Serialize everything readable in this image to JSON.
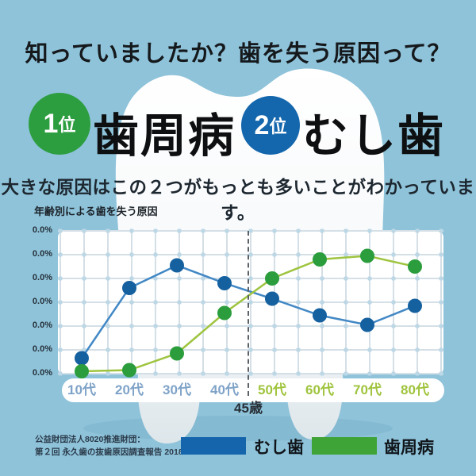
{
  "page": {
    "title": "知っていましたか？歯を失う原因って？",
    "subtitle": "大きな原因はこの２つがもっとも多いことがわかっています。",
    "background_color": "#8fc3da"
  },
  "ranking": {
    "first": {
      "badge_num": "1",
      "badge_suffix": "位",
      "label": "歯周病",
      "badge_color": "#2d9e40"
    },
    "second": {
      "badge_num": "2",
      "badge_suffix": "位",
      "label": "むし歯",
      "badge_color": "#1467ad"
    }
  },
  "chart_data": {
    "type": "line",
    "title": "年齢別による歯を失う原因",
    "categories": [
      "10代",
      "20代",
      "30代",
      "40代",
      "50代",
      "60代",
      "70代",
      "80代"
    ],
    "category_colors": [
      "#7fa3c8",
      "#7fa3c8",
      "#7fa3c8",
      "#7fa3c8",
      "#9fc43c",
      "#9fc43c",
      "#9fc43c",
      "#9fc43c"
    ],
    "y_tick_labels": [
      "0.0%",
      "0.0%",
      "0.0%",
      "0.0%",
      "0.0%",
      "0.0%",
      "0.0%"
    ],
    "values_note": "y tick labels all render as 0.0% in the image; series values are relative grid units (0 = bottom gridline, 6 = top gridline)",
    "ylim": [
      0,
      6
    ],
    "grid": true,
    "series": [
      {
        "name": "むし歯",
        "line_color": "#4288c5",
        "dot_color": "#15609f",
        "values": [
          0.65,
          3.6,
          4.55,
          3.8,
          3.15,
          2.45,
          2.05,
          2.85
        ]
      },
      {
        "name": "歯周病",
        "line_color": "#9ec43f",
        "dot_color": "#2b9d3c",
        "values": [
          0.1,
          0.15,
          0.85,
          2.55,
          4.0,
          4.8,
          4.95,
          4.5
        ]
      }
    ],
    "annotation": {
      "label": "45歳",
      "position": "vertical dashed line between 40代 and 50代"
    },
    "legend_position": "bottom"
  },
  "footer": {
    "source_line1": "公益財団法人8020推進財団：",
    "source_line2": "第２回 永久歯の抜歯原因調査報告 2018",
    "legend": [
      {
        "label": "むし歯",
        "color": "#1565ad"
      },
      {
        "label": "歯周病",
        "color": "#3fa437"
      }
    ]
  }
}
